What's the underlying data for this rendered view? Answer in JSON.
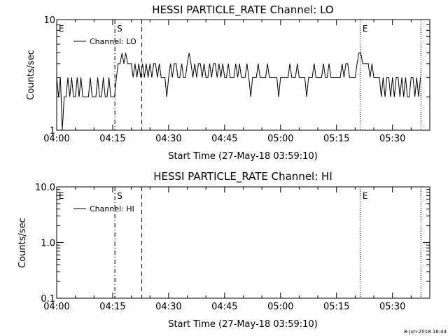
{
  "chart_data": [
    {
      "type": "line",
      "title": "HESSI PARTICLE_RATE Channel: LO",
      "xlabel": "Start Time (27-May-18 03:59:10)",
      "ylabel": "Counts/sec",
      "x_unit": "minutes after 04:00",
      "xlim": [
        0,
        100
      ],
      "ylim": [
        1,
        10
      ],
      "yscale": "log",
      "xticks": [
        0,
        15,
        30,
        45,
        60,
        75,
        90
      ],
      "xtick_labels": [
        "04:00",
        "04:15",
        "04:30",
        "04:45",
        "05:00",
        "05:15",
        "05:30"
      ],
      "yticks": [
        1,
        10
      ],
      "ytick_labels": [
        "1",
        "10"
      ],
      "legend": {
        "label": "Channel: LO",
        "position": "top-left"
      },
      "markers": [
        {
          "label": "E",
          "x": 0,
          "style": "none"
        },
        {
          "label": "S",
          "x": 15.6,
          "style": "dashdot"
        },
        {
          "label": "",
          "x": 22.8,
          "style": "dashed"
        },
        {
          "label": "E",
          "x": 81.4,
          "style": "dotted"
        },
        {
          "label": "",
          "x": 97.6,
          "style": "dotted"
        }
      ],
      "series": [
        {
          "name": "Channel: LO",
          "x": [
            0,
            0.5,
            1,
            1.5,
            2,
            2.5,
            3,
            3.5,
            4,
            4.5,
            5,
            5.5,
            6,
            6.5,
            7,
            7.5,
            8,
            8.5,
            9,
            9.5,
            10,
            10.5,
            11,
            11.5,
            12,
            12.5,
            13,
            13.5,
            14,
            14.5,
            15,
            15.5,
            16,
            16.5,
            17,
            17.5,
            18,
            18.5,
            19,
            19.5,
            20,
            20.5,
            21,
            21.5,
            22,
            22.5,
            23,
            23.5,
            24,
            24.5,
            25,
            25.5,
            26,
            26.5,
            27,
            27.5,
            28,
            28.5,
            29,
            29.5,
            30,
            30.5,
            31,
            31.5,
            32,
            32.5,
            33,
            33.5,
            34,
            34.5,
            35,
            35.5,
            36,
            36.5,
            37,
            37.5,
            38,
            38.5,
            39,
            39.5,
            40,
            40.5,
            41,
            41.5,
            42,
            42.5,
            43,
            43.5,
            44,
            44.5,
            45,
            45.5,
            46,
            46.5,
            47,
            47.5,
            48,
            48.5,
            49,
            49.5,
            50,
            50.5,
            51,
            51.5,
            52,
            52.5,
            53,
            53.5,
            54,
            54.5,
            55,
            55.5,
            56,
            56.5,
            57,
            57.5,
            58,
            58.5,
            59,
            59.5,
            60,
            60.5,
            61,
            61.5,
            62,
            62.5,
            63,
            63.5,
            64,
            64.5,
            65,
            65.5,
            66,
            66.5,
            67,
            67.5,
            68,
            68.5,
            69,
            69.5,
            70,
            70.5,
            71,
            71.5,
            72,
            72.5,
            73,
            73.5,
            74,
            74.5,
            75,
            75.5,
            76,
            76.5,
            77,
            77.5,
            78,
            78.5,
            79,
            79.5,
            80,
            80.5,
            81,
            81.5,
            82,
            82.5,
            83,
            83.5,
            84,
            84.5,
            85,
            85.5,
            86,
            86.5,
            87,
            87.5,
            88,
            88.5,
            89,
            89.5,
            90,
            90.5,
            91,
            91.5,
            92,
            92.5,
            93,
            93.5,
            94,
            94.5,
            95,
            95.5,
            96,
            96.5,
            97,
            97.5
          ],
          "values": [
            3,
            2,
            3,
            1,
            2,
            2,
            3,
            2,
            3,
            2,
            2,
            3,
            2,
            3,
            2,
            2,
            2,
            2,
            3,
            2,
            2,
            2,
            3,
            2,
            2,
            3,
            2,
            2,
            3,
            2,
            2,
            2,
            3,
            4,
            4,
            5,
            4,
            5,
            4,
            4,
            4,
            3,
            4,
            3,
            4,
            3,
            4,
            3,
            4,
            3,
            4,
            3,
            4,
            4,
            3,
            4,
            3,
            3,
            3,
            2,
            3,
            4,
            3,
            4,
            4,
            3,
            3,
            4,
            3,
            3,
            4,
            5,
            4,
            3,
            4,
            3,
            4,
            4,
            3,
            4,
            3,
            3,
            4,
            3,
            4,
            4,
            3,
            4,
            3,
            4,
            3,
            3,
            4,
            3,
            3,
            3,
            4,
            3,
            4,
            3,
            3,
            3,
            4,
            3,
            2,
            3,
            3,
            3,
            4,
            3,
            3,
            3,
            3,
            4,
            3,
            3,
            3,
            3,
            3,
            2,
            3,
            3,
            3,
            3,
            3,
            4,
            3,
            3,
            3,
            4,
            3,
            3,
            3,
            3,
            2,
            3,
            3,
            3,
            4,
            3,
            3,
            3,
            3,
            4,
            3,
            3,
            4,
            3,
            3,
            3,
            3,
            3,
            3,
            4,
            3,
            4,
            4,
            3,
            3,
            3,
            3,
            4,
            5,
            5,
            4,
            4,
            4,
            4,
            3,
            4,
            3,
            3,
            3,
            3,
            2,
            3,
            2,
            3,
            3,
            2,
            3,
            2,
            3,
            3,
            2,
            3,
            2,
            3,
            2,
            2,
            3,
            3,
            2,
            3,
            2,
            3
          ]
        }
      ]
    },
    {
      "type": "line",
      "title": "HESSI PARTICLE_RATE Channel: HI",
      "xlabel": "Start Time (27-May-18 03:59:10)",
      "ylabel": "Counts/sec",
      "x_unit": "minutes after 04:00",
      "xlim": [
        0,
        100
      ],
      "ylim": [
        0.1,
        10
      ],
      "yscale": "log",
      "xticks": [
        0,
        15,
        30,
        45,
        60,
        75,
        90
      ],
      "xtick_labels": [
        "04:00",
        "04:15",
        "04:30",
        "04:45",
        "05:00",
        "05:15",
        "05:30"
      ],
      "yticks": [
        0.1,
        1,
        10
      ],
      "ytick_labels": [
        "0.1",
        "1.0",
        "10.0"
      ],
      "legend": {
        "label": "Channel: HI",
        "position": "top-left"
      },
      "markers": [
        {
          "label": "E",
          "x": 0,
          "style": "none"
        },
        {
          "label": "S",
          "x": 15.6,
          "style": "dashdot"
        },
        {
          "label": "",
          "x": 22.8,
          "style": "dashed"
        },
        {
          "label": "E",
          "x": 81.4,
          "style": "dotted"
        },
        {
          "label": "",
          "x": 97.6,
          "style": "dotted"
        }
      ],
      "series": [
        {
          "name": "Channel: HI",
          "x": [],
          "values": []
        }
      ]
    }
  ],
  "footer": {
    "timestamp": "8-Jun-2018 16:44"
  }
}
